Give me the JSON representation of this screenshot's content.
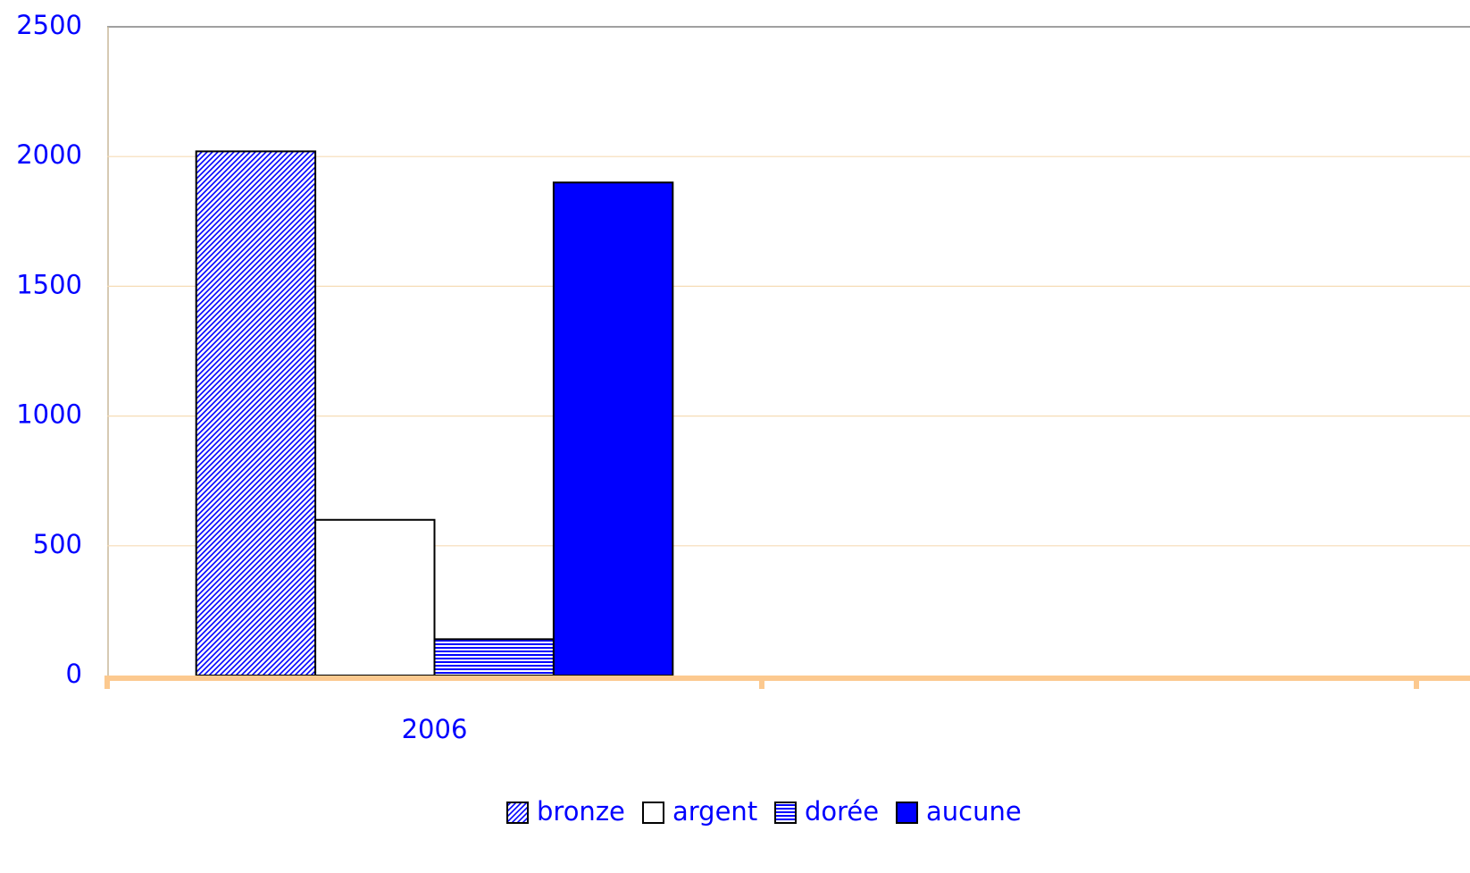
{
  "chart_data": {
    "type": "bar",
    "categories": [
      "2006",
      null
    ],
    "series": [
      {
        "name": "bronze",
        "color": "#0000ff",
        "pattern": "diagonal",
        "values": [
          2020,
          null
        ]
      },
      {
        "name": "argent",
        "color": "#ffffff",
        "pattern": "solid",
        "values": [
          600,
          null
        ]
      },
      {
        "name": "dorée",
        "color": "#0000ff",
        "pattern": "horizontal",
        "values": [
          140,
          null
        ]
      },
      {
        "name": "aucune",
        "color": "#0000ff",
        "pattern": "solid",
        "values": [
          1900,
          null
        ]
      }
    ],
    "ylim": [
      0,
      2500
    ],
    "yticks": [
      0,
      500,
      1000,
      1500,
      2000,
      2500
    ],
    "grid": true,
    "legend": "bottom"
  }
}
